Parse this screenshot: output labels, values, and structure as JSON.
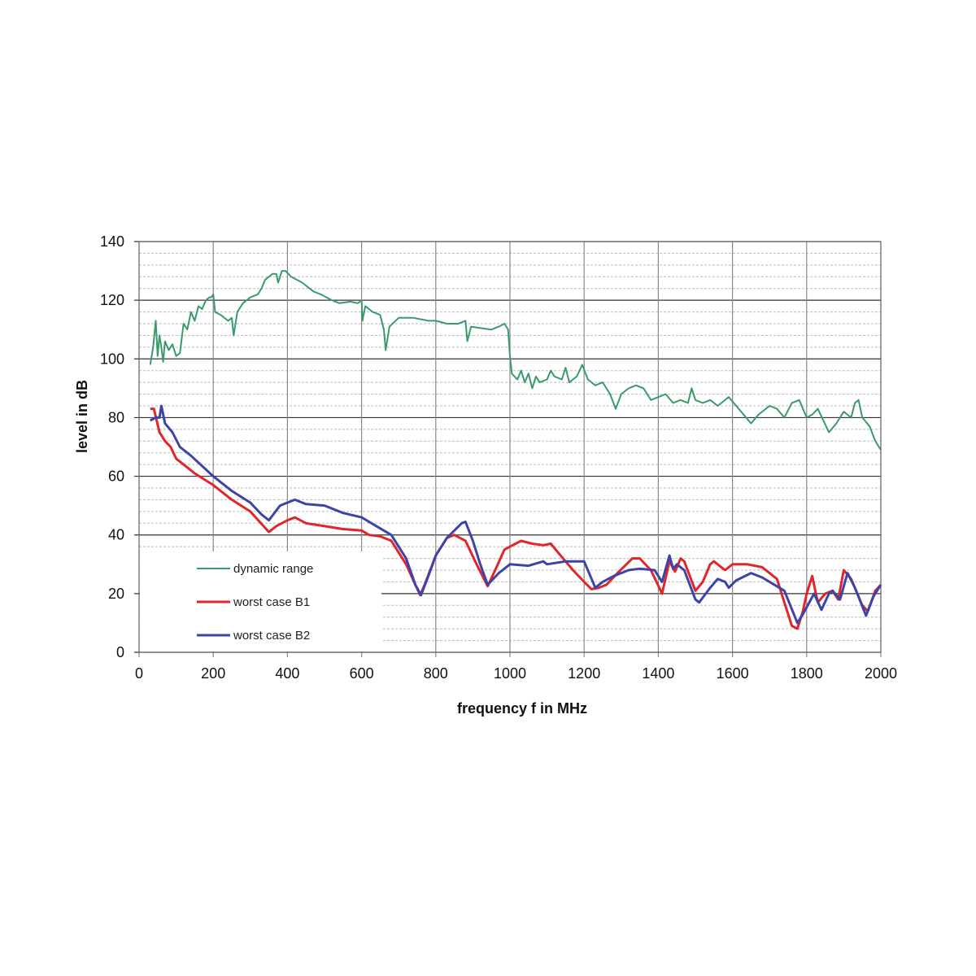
{
  "chart_data": {
    "type": "line",
    "title": "",
    "xlabel": "frequency f in MHz",
    "ylabel": "level in dB",
    "xlim": [
      0,
      2000
    ],
    "ylim": [
      0,
      140
    ],
    "x_ticks": [
      0,
      200,
      400,
      600,
      800,
      1000,
      1200,
      1400,
      1600,
      1800,
      2000
    ],
    "y_ticks": [
      0,
      20,
      40,
      60,
      80,
      100,
      120,
      140
    ],
    "y_minor_step": 4,
    "grid": true,
    "legend_position": "bottom-left",
    "series": [
      {
        "name": "dynamic range",
        "color": "#3a9a6a",
        "points": [
          [
            30,
            98
          ],
          [
            38,
            104
          ],
          [
            45,
            113
          ],
          [
            50,
            101
          ],
          [
            55,
            108
          ],
          [
            60,
            104
          ],
          [
            65,
            99
          ],
          [
            70,
            106
          ],
          [
            80,
            103
          ],
          [
            90,
            105
          ],
          [
            100,
            101
          ],
          [
            110,
            102
          ],
          [
            120,
            112
          ],
          [
            130,
            110
          ],
          [
            140,
            116
          ],
          [
            150,
            113
          ],
          [
            160,
            118
          ],
          [
            170,
            117
          ],
          [
            180,
            120
          ],
          [
            190,
            121
          ],
          [
            195,
            121
          ],
          [
            200,
            122
          ],
          [
            205,
            116
          ],
          [
            220,
            115
          ],
          [
            240,
            113
          ],
          [
            250,
            114
          ],
          [
            255,
            108
          ],
          [
            265,
            116
          ],
          [
            280,
            119
          ],
          [
            300,
            121
          ],
          [
            320,
            122
          ],
          [
            330,
            124
          ],
          [
            340,
            127
          ],
          [
            360,
            129
          ],
          [
            370,
            129
          ],
          [
            375,
            126
          ],
          [
            385,
            130
          ],
          [
            395,
            130
          ],
          [
            410,
            128
          ],
          [
            440,
            126
          ],
          [
            470,
            123
          ],
          [
            490,
            122
          ],
          [
            520,
            120
          ],
          [
            540,
            119
          ],
          [
            570,
            119.5
          ],
          [
            590,
            119
          ],
          [
            600,
            120
          ],
          [
            602,
            113
          ],
          [
            610,
            118
          ],
          [
            630,
            116
          ],
          [
            650,
            115
          ],
          [
            660,
            110
          ],
          [
            665,
            103
          ],
          [
            675,
            111
          ],
          [
            700,
            114
          ],
          [
            740,
            114
          ],
          [
            780,
            113
          ],
          [
            800,
            113
          ],
          [
            830,
            112
          ],
          [
            860,
            112
          ],
          [
            880,
            113
          ],
          [
            885,
            106
          ],
          [
            895,
            111
          ],
          [
            920,
            110.5
          ],
          [
            950,
            110
          ],
          [
            970,
            111
          ],
          [
            985,
            112
          ],
          [
            995,
            110
          ],
          [
            1000,
            101
          ],
          [
            1005,
            95
          ],
          [
            1020,
            93
          ],
          [
            1030,
            96
          ],
          [
            1040,
            92
          ],
          [
            1050,
            95
          ],
          [
            1060,
            90
          ],
          [
            1070,
            94
          ],
          [
            1080,
            92
          ],
          [
            1100,
            93
          ],
          [
            1110,
            96
          ],
          [
            1120,
            94
          ],
          [
            1140,
            93
          ],
          [
            1150,
            97
          ],
          [
            1160,
            92
          ],
          [
            1180,
            94
          ],
          [
            1195,
            98
          ],
          [
            1210,
            93
          ],
          [
            1230,
            91
          ],
          [
            1250,
            92
          ],
          [
            1270,
            88
          ],
          [
            1285,
            83
          ],
          [
            1300,
            88
          ],
          [
            1320,
            90
          ],
          [
            1340,
            91
          ],
          [
            1360,
            90
          ],
          [
            1380,
            86
          ],
          [
            1400,
            87
          ],
          [
            1420,
            88
          ],
          [
            1440,
            85
          ],
          [
            1460,
            86
          ],
          [
            1480,
            85
          ],
          [
            1490,
            90
          ],
          [
            1500,
            86
          ],
          [
            1520,
            85
          ],
          [
            1540,
            86
          ],
          [
            1560,
            84
          ],
          [
            1590,
            87
          ],
          [
            1610,
            84
          ],
          [
            1630,
            81
          ],
          [
            1650,
            78
          ],
          [
            1670,
            81
          ],
          [
            1700,
            84
          ],
          [
            1720,
            83
          ],
          [
            1740,
            80
          ],
          [
            1760,
            85
          ],
          [
            1780,
            86
          ],
          [
            1800,
            80
          ],
          [
            1815,
            81
          ],
          [
            1830,
            83
          ],
          [
            1845,
            79
          ],
          [
            1860,
            75
          ],
          [
            1880,
            78
          ],
          [
            1900,
            82
          ],
          [
            1920,
            80
          ],
          [
            1930,
            85
          ],
          [
            1940,
            86
          ],
          [
            1950,
            80
          ],
          [
            1970,
            77
          ],
          [
            1985,
            72
          ],
          [
            2000,
            69
          ]
        ]
      },
      {
        "name": "worst case B1",
        "color": "#e0262a",
        "points": [
          [
            30,
            83
          ],
          [
            40,
            83
          ],
          [
            55,
            75
          ],
          [
            70,
            72
          ],
          [
            85,
            70
          ],
          [
            100,
            66
          ],
          [
            120,
            64
          ],
          [
            150,
            61
          ],
          [
            200,
            57
          ],
          [
            250,
            52
          ],
          [
            300,
            48
          ],
          [
            350,
            41
          ],
          [
            370,
            43
          ],
          [
            400,
            45
          ],
          [
            420,
            46
          ],
          [
            450,
            44
          ],
          [
            500,
            43
          ],
          [
            550,
            42
          ],
          [
            600,
            41.5
          ],
          [
            620,
            40
          ],
          [
            650,
            39.5
          ],
          [
            680,
            38
          ],
          [
            720,
            30
          ],
          [
            745,
            23
          ],
          [
            758,
            19.5
          ],
          [
            770,
            23
          ],
          [
            800,
            33
          ],
          [
            830,
            39
          ],
          [
            850,
            40
          ],
          [
            880,
            38
          ],
          [
            910,
            30
          ],
          [
            940,
            22.5
          ],
          [
            960,
            28
          ],
          [
            985,
            35
          ],
          [
            1000,
            36
          ],
          [
            1030,
            38
          ],
          [
            1060,
            37
          ],
          [
            1090,
            36.5
          ],
          [
            1110,
            37
          ],
          [
            1130,
            34
          ],
          [
            1170,
            28
          ],
          [
            1200,
            24
          ],
          [
            1220,
            21.5
          ],
          [
            1240,
            22
          ],
          [
            1260,
            23
          ],
          [
            1290,
            27
          ],
          [
            1330,
            32
          ],
          [
            1350,
            32
          ],
          [
            1380,
            28
          ],
          [
            1410,
            20
          ],
          [
            1430,
            31
          ],
          [
            1445,
            27.5
          ],
          [
            1460,
            32
          ],
          [
            1470,
            31
          ],
          [
            1500,
            21
          ],
          [
            1520,
            24
          ],
          [
            1540,
            30
          ],
          [
            1550,
            31
          ],
          [
            1570,
            29
          ],
          [
            1580,
            28
          ],
          [
            1600,
            30
          ],
          [
            1640,
            30
          ],
          [
            1680,
            29
          ],
          [
            1720,
            25
          ],
          [
            1740,
            17
          ],
          [
            1760,
            9
          ],
          [
            1775,
            8
          ],
          [
            1790,
            14
          ],
          [
            1800,
            20
          ],
          [
            1815,
            26
          ],
          [
            1830,
            17
          ],
          [
            1850,
            20
          ],
          [
            1870,
            21
          ],
          [
            1885,
            18
          ],
          [
            1900,
            28
          ],
          [
            1920,
            25
          ],
          [
            1950,
            16
          ],
          [
            1965,
            14
          ],
          [
            1985,
            21
          ],
          [
            2000,
            23
          ]
        ]
      },
      {
        "name": "worst case B2",
        "color": "#3c44a8",
        "points": [
          [
            30,
            79
          ],
          [
            45,
            80
          ],
          [
            55,
            80
          ],
          [
            60,
            84
          ],
          [
            70,
            78
          ],
          [
            90,
            75
          ],
          [
            110,
            70
          ],
          [
            140,
            67
          ],
          [
            200,
            60
          ],
          [
            250,
            55
          ],
          [
            300,
            51
          ],
          [
            330,
            47
          ],
          [
            350,
            45
          ],
          [
            380,
            50
          ],
          [
            400,
            51
          ],
          [
            420,
            52
          ],
          [
            450,
            50.5
          ],
          [
            500,
            50
          ],
          [
            550,
            47.5
          ],
          [
            600,
            46
          ],
          [
            640,
            43
          ],
          [
            680,
            40
          ],
          [
            720,
            32
          ],
          [
            745,
            23
          ],
          [
            760,
            19.5
          ],
          [
            780,
            26
          ],
          [
            800,
            33
          ],
          [
            830,
            39
          ],
          [
            870,
            44
          ],
          [
            880,
            44.5
          ],
          [
            900,
            38
          ],
          [
            920,
            30
          ],
          [
            940,
            23
          ],
          [
            970,
            27
          ],
          [
            1000,
            30
          ],
          [
            1050,
            29.5
          ],
          [
            1090,
            31
          ],
          [
            1100,
            30
          ],
          [
            1150,
            31
          ],
          [
            1200,
            31
          ],
          [
            1230,
            22
          ],
          [
            1250,
            24
          ],
          [
            1280,
            26
          ],
          [
            1320,
            28
          ],
          [
            1350,
            28.5
          ],
          [
            1390,
            28
          ],
          [
            1410,
            24
          ],
          [
            1430,
            33
          ],
          [
            1440,
            28.5
          ],
          [
            1450,
            30
          ],
          [
            1470,
            28
          ],
          [
            1500,
            18
          ],
          [
            1510,
            17
          ],
          [
            1540,
            22
          ],
          [
            1560,
            25
          ],
          [
            1580,
            24
          ],
          [
            1590,
            22
          ],
          [
            1610,
            24.5
          ],
          [
            1650,
            27
          ],
          [
            1680,
            25.5
          ],
          [
            1700,
            24
          ],
          [
            1740,
            21
          ],
          [
            1775,
            10
          ],
          [
            1790,
            13
          ],
          [
            1820,
            20
          ],
          [
            1840,
            14.5
          ],
          [
            1860,
            20
          ],
          [
            1870,
            21
          ],
          [
            1890,
            18
          ],
          [
            1910,
            27
          ],
          [
            1930,
            22
          ],
          [
            1960,
            12.5
          ],
          [
            1980,
            19
          ],
          [
            2000,
            23
          ]
        ]
      }
    ]
  }
}
